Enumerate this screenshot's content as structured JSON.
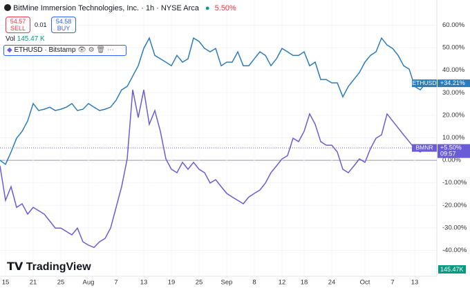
{
  "header": {
    "title": "BitMine Immersion Technologies, Inc. · 1h · NYSE Arca",
    "change": "5.50%",
    "sell_price": "54.57",
    "sell_label": "SELL",
    "spread": "0.01",
    "buy_price": "54.58",
    "buy_label": "BUY",
    "vol_label": "Vol",
    "vol_value": "145.47 K",
    "overlay": "ETHUSD · Bitstamp"
  },
  "footer": {
    "logo": "TradingView",
    "vol_badge": "145.47K"
  },
  "chart_data": {
    "type": "line",
    "x": [
      null,
      "15",
      null,
      null,
      null,
      null,
      "21",
      null,
      null,
      null,
      null,
      "25",
      null,
      null,
      null,
      null,
      "Aug",
      null,
      null,
      null,
      null,
      "7",
      null,
      null,
      null,
      null,
      "13",
      null,
      null,
      null,
      null,
      "19",
      null,
      null,
      null,
      null,
      "25",
      null,
      null,
      null,
      null,
      "Sep",
      null,
      null,
      null,
      null,
      "8",
      null,
      null,
      null,
      null,
      "12",
      null,
      null,
      null,
      "18",
      null,
      null,
      null,
      null,
      "24",
      null,
      null,
      null,
      null,
      null,
      "Oct",
      null,
      null,
      null,
      null,
      "7",
      null,
      null,
      null,
      "13",
      null,
      null
    ],
    "series": [
      {
        "name": "ETHUSD",
        "color": "#2b7bbd",
        "badge": "+34.21%",
        "values": [
          0,
          -1.8,
          3.7,
          9.8,
          12.9,
          17.5,
          25.2,
          22.1,
          22.7,
          23.6,
          22.1,
          22.7,
          23.6,
          25.2,
          22.1,
          22.7,
          25.2,
          23.6,
          22.1,
          22.7,
          23.6,
          26.7,
          31.3,
          32.8,
          37.4,
          42.0,
          49.7,
          54.3,
          46.6,
          45.1,
          43.6,
          42.0,
          46.6,
          43.6,
          45.1,
          54.3,
          52.8,
          49.7,
          48.2,
          49.7,
          42.0,
          43.6,
          43.6,
          48.2,
          42.0,
          42.0,
          45.1,
          48.2,
          46.6,
          42.0,
          45.1,
          49.7,
          48.2,
          46.6,
          46.6,
          48.2,
          42.0,
          43.6,
          35.9,
          35.9,
          34.4,
          34.4,
          28.2,
          32.8,
          35.9,
          39.0,
          43.6,
          46.6,
          48.2,
          54.3,
          51.2,
          49.7,
          46.6,
          42.0,
          40.5,
          32.8,
          31.3,
          34.21
        ]
      },
      {
        "name": "BMNR",
        "color": "#6a5cd6",
        "badge": "+5.50%",
        "countdown": "09:57",
        "values": [
          -2.5,
          -17.8,
          -11.7,
          -20.9,
          -19.3,
          -23.9,
          -20.9,
          -22.4,
          -23.9,
          -27.0,
          -30.1,
          -30.1,
          -31.6,
          -33.1,
          -30.1,
          -36.2,
          -37.7,
          -38.7,
          -36.2,
          -34.7,
          -30.1,
          -20.9,
          -11.7,
          0.6,
          31.3,
          19.0,
          31.3,
          16.0,
          22.1,
          12.9,
          0.6,
          -4.0,
          -5.5,
          -0.9,
          -4.0,
          -0.9,
          -4.0,
          -5.5,
          -10.1,
          -8.6,
          -11.7,
          -14.7,
          -16.3,
          -17.8,
          -19.3,
          -16.3,
          -14.7,
          -13.2,
          -10.1,
          -5.5,
          -2.5,
          0.6,
          2.1,
          9.8,
          8.3,
          12.9,
          20.6,
          16.0,
          8.3,
          6.7,
          6.7,
          3.7,
          -4.0,
          -5.5,
          -2.5,
          0.6,
          -0.9,
          5.2,
          9.8,
          11.3,
          20.6,
          17.5,
          14.4,
          11.3,
          8.3,
          5.2,
          3.7,
          5.5
        ]
      }
    ],
    "ylim": [
      -51.5,
      71.2
    ],
    "yticks": [
      {
        "value": 60,
        "label": "60.00%"
      },
      {
        "value": 50,
        "label": "50.00%"
      },
      {
        "value": 40,
        "label": "40.00%"
      },
      {
        "value": 30,
        "label": "30.00%"
      },
      {
        "value": 20,
        "label": "20.00%"
      },
      {
        "value": 10,
        "label": "10.00%"
      },
      {
        "value": 0,
        "label": "0.00%"
      },
      {
        "value": -10,
        "label": "-10.00%"
      },
      {
        "value": -20,
        "label": "-20.00%"
      },
      {
        "value": -30,
        "label": "-30.00%"
      },
      {
        "value": -40,
        "label": "-40.00%"
      }
    ],
    "grid": true
  }
}
